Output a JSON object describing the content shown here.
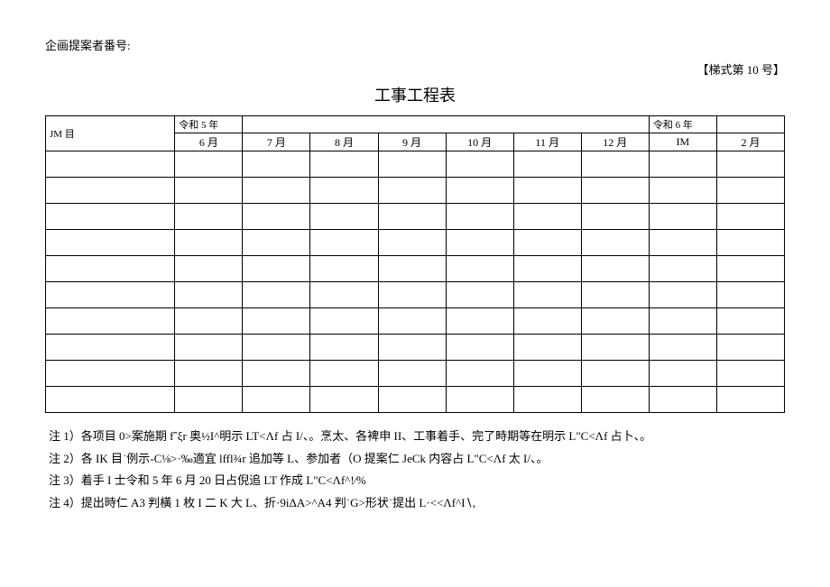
{
  "header": {
    "proposer_label": "企画提案者番号:",
    "form_number": "【梯式第 10 号】",
    "title": "工事工程表"
  },
  "table": {
    "item_header": "JM 目",
    "year_left": "令和 5 年",
    "year_right": "令和 6 年",
    "months": [
      "6 月",
      "7 月",
      "8 月",
      "9 月",
      "10 月",
      "11 月",
      "12 月",
      "IM",
      "2 月"
    ],
    "body_row_count": 10
  },
  "notes": {
    "n1": "注 1）各项目 0>案施期 fˆξr 奥½I^明示 LT<Λf 占 I/、。烹太、各裨申 II、工事着手、完了畤期等在明示 L\"C<Λf 占卜、。",
    "n2": "注 2）各 IK 目˙例示-C⅛>·‰適宜 lffl¾r 追加等 L、参加者（O 提案仁 JeCk 内容占 L\"C<Λf 太 I/、。",
    "n3": "注 3）着手 I 士令和 5 年 6 月 20 日占倪追 LT 作成 L\"C<Λf^!⁄%",
    "n4": "注 4）提出時仁 A3 判橫 1 枚 I 二 K 大 L、折·9iΔA>^A4 判˙G>形状˙提出 L·<<Λf^I∖,"
  }
}
